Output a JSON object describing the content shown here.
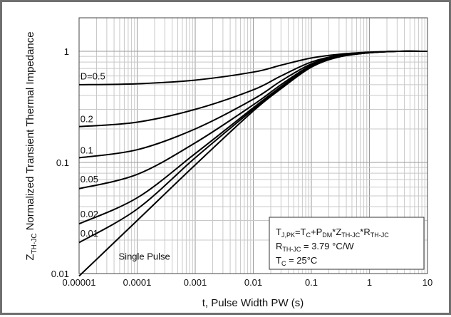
{
  "chart_data": {
    "type": "line",
    "xscale": "log",
    "yscale": "log",
    "xlim": [
      1e-05,
      10
    ],
    "ylim": [
      0.01,
      2
    ],
    "grid": true,
    "xlabel": "t, Pulse Width PW (s)",
    "ylabel": {
      "main": "Z",
      "sub": "TH-JC",
      "rest": " Normalized Transient Thermal Impedance"
    },
    "xticks": [
      {
        "value": 1e-05,
        "label": "0.00001"
      },
      {
        "value": 0.0001,
        "label": "0.0001"
      },
      {
        "value": 0.001,
        "label": "0.001"
      },
      {
        "value": 0.01,
        "label": "0.01"
      },
      {
        "value": 0.1,
        "label": "0.1"
      },
      {
        "value": 1,
        "label": "1"
      },
      {
        "value": 10,
        "label": "10"
      }
    ],
    "yticks": [
      {
        "value": 0.01,
        "label": "0.01"
      },
      {
        "value": 0.1,
        "label": "0.1"
      },
      {
        "value": 1,
        "label": "1"
      }
    ],
    "series": [
      {
        "name": "D=0.5",
        "x": [
          1e-05,
          0.0001,
          0.001,
          0.01,
          0.03,
          0.1,
          0.3,
          1,
          3,
          10
        ],
        "y": [
          0.5,
          0.51,
          0.55,
          0.65,
          0.75,
          0.87,
          0.94,
          0.98,
          1.0,
          1.0
        ]
      },
      {
        "name": "0.2",
        "x": [
          1e-05,
          0.0001,
          0.001,
          0.01,
          0.03,
          0.1,
          0.3,
          1,
          3,
          10
        ],
        "y": [
          0.21,
          0.23,
          0.3,
          0.45,
          0.6,
          0.8,
          0.92,
          0.97,
          1.0,
          1.0
        ]
      },
      {
        "name": "0.1",
        "x": [
          1e-05,
          0.0001,
          0.001,
          0.01,
          0.03,
          0.1,
          0.3,
          1,
          3,
          10
        ],
        "y": [
          0.11,
          0.13,
          0.2,
          0.37,
          0.54,
          0.77,
          0.91,
          0.97,
          1.0,
          1.0
        ]
      },
      {
        "name": "0.05",
        "x": [
          1e-05,
          0.0001,
          0.001,
          0.01,
          0.03,
          0.1,
          0.3,
          1,
          3,
          10
        ],
        "y": [
          0.058,
          0.078,
          0.15,
          0.33,
          0.5,
          0.75,
          0.9,
          0.97,
          1.0,
          1.0
        ]
      },
      {
        "name": "0.02",
        "x": [
          1e-05,
          0.0001,
          0.001,
          0.01,
          0.03,
          0.1,
          0.3,
          1,
          3,
          10
        ],
        "y": [
          0.028,
          0.048,
          0.12,
          0.31,
          0.48,
          0.74,
          0.9,
          0.97,
          1.0,
          1.0
        ]
      },
      {
        "name": "0.01",
        "x": [
          1e-05,
          0.0001,
          0.001,
          0.01,
          0.03,
          0.1,
          0.3,
          1,
          3,
          10
        ],
        "y": [
          0.019,
          0.038,
          0.11,
          0.3,
          0.47,
          0.73,
          0.89,
          0.97,
          1.0,
          1.0
        ]
      },
      {
        "name": "Single Pulse",
        "x": [
          1e-05,
          0.0001,
          0.001,
          0.01,
          0.03,
          0.1,
          0.3,
          1,
          3,
          10
        ],
        "y": [
          0.0095,
          0.03,
          0.095,
          0.29,
          0.46,
          0.72,
          0.89,
          0.97,
          1.0,
          1.0
        ]
      }
    ],
    "curve_labels": [
      {
        "text": "D=0.5",
        "x": 1.05e-05,
        "y": 0.56
      },
      {
        "text": "0.2",
        "x": 1.05e-05,
        "y": 0.23
      },
      {
        "text": "0.1",
        "x": 1.05e-05,
        "y": 0.12
      },
      {
        "text": "0.05",
        "x": 1.05e-05,
        "y": 0.066
      },
      {
        "text": "0.02",
        "x": 1.05e-05,
        "y": 0.032
      },
      {
        "text": "0.01",
        "x": 1.05e-05,
        "y": 0.0215
      },
      {
        "text": "Single Pulse",
        "x": 4.8e-05,
        "y": 0.0133
      }
    ],
    "annotation": [
      [
        {
          "t": "T"
        },
        {
          "t": "J,PK",
          "sub": true
        },
        {
          "t": "=T"
        },
        {
          "t": "C",
          "sub": true
        },
        {
          "t": "+P"
        },
        {
          "t": "DM",
          "sub": true
        },
        {
          "t": "*Z"
        },
        {
          "t": "TH-JC",
          "sub": true
        },
        {
          "t": "*R"
        },
        {
          "t": "TH-JC",
          "sub": true
        }
      ],
      [
        {
          "t": "R"
        },
        {
          "t": "TH-JC",
          "sub": true
        },
        {
          "t": " = 3.79 °C/W"
        }
      ],
      [
        {
          "t": "T"
        },
        {
          "t": "C",
          "sub": true
        },
        {
          "t": " = 25°C"
        }
      ]
    ]
  }
}
